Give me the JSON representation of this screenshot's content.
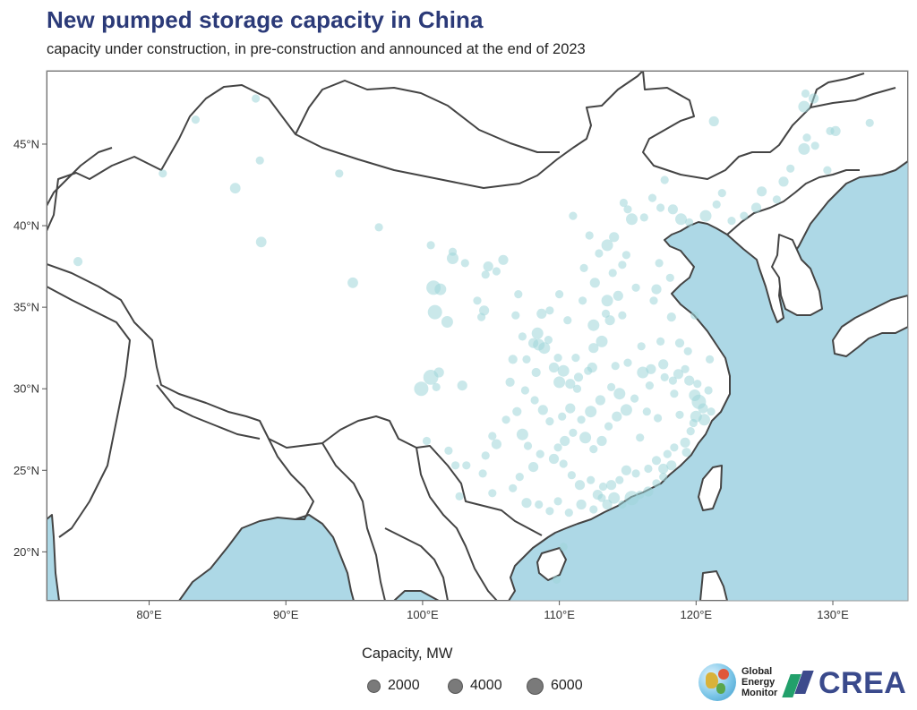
{
  "header": {
    "title": "New pumped storage capacity in China",
    "subtitle": "capacity under construction, in pre-construction and announced at the end of 2023"
  },
  "map": {
    "projection": "equirectangular",
    "lon_range": [
      72.5,
      135.5
    ],
    "lat_range": [
      17,
      49.5
    ],
    "x_ticks": [
      {
        "lon": 80,
        "label": "80°E"
      },
      {
        "lon": 90,
        "label": "90°E"
      },
      {
        "lon": 100,
        "label": "100°E"
      },
      {
        "lon": 110,
        "label": "110°E"
      },
      {
        "lon": 120,
        "label": "120°E"
      },
      {
        "lon": 130,
        "label": "130°E"
      }
    ],
    "y_ticks": [
      {
        "lat": 20,
        "label": "20°N"
      },
      {
        "lat": 25,
        "label": "25°N"
      },
      {
        "lat": 30,
        "label": "30°N"
      },
      {
        "lat": 35,
        "label": "35°N"
      },
      {
        "lat": 40,
        "label": "40°N"
      },
      {
        "lat": 45,
        "label": "45°N"
      }
    ],
    "colors": {
      "land": "#ffffff",
      "sea": "#add8e6",
      "border": "#444444",
      "point_fill": "#9fd6d9",
      "frame": "#999999"
    },
    "point_opacity": 0.55
  },
  "chart_data": {
    "type": "scatter",
    "x_label": "",
    "y_label": "",
    "size_variable": "Capacity, MW",
    "points": [
      [
        83.4,
        46.5,
        1200
      ],
      [
        87.8,
        47.8,
        1200
      ],
      [
        88.1,
        44.0,
        1200
      ],
      [
        81.0,
        43.2,
        1200
      ],
      [
        86.3,
        42.3,
        2000
      ],
      [
        88.2,
        39.0,
        2000
      ],
      [
        93.9,
        43.2,
        1200
      ],
      [
        96.8,
        39.9,
        1200
      ],
      [
        94.9,
        36.5,
        2000
      ],
      [
        74.8,
        37.8,
        1500
      ],
      [
        100.6,
        38.8,
        1200
      ],
      [
        100.8,
        36.2,
        3600
      ],
      [
        101.3,
        36.1,
        2400
      ],
      [
        102.2,
        38.0,
        2400
      ],
      [
        102.2,
        38.4,
        1200
      ],
      [
        103.1,
        37.7,
        1200
      ],
      [
        104.6,
        37.0,
        1200
      ],
      [
        104.8,
        37.5,
        1800
      ],
      [
        105.4,
        37.2,
        1200
      ],
      [
        105.9,
        37.9,
        1800
      ],
      [
        104.0,
        35.4,
        1200
      ],
      [
        104.5,
        34.8,
        1800
      ],
      [
        104.3,
        34.4,
        1200
      ],
      [
        100.9,
        34.7,
        3600
      ],
      [
        101.8,
        34.1,
        2400
      ],
      [
        100.6,
        30.7,
        4000
      ],
      [
        99.9,
        30.0,
        3600
      ],
      [
        101.2,
        31.0,
        1800
      ],
      [
        101.0,
        30.1,
        1200
      ],
      [
        102.9,
        30.2,
        1800
      ],
      [
        100.3,
        26.8,
        1200
      ],
      [
        101.9,
        26.2,
        1200
      ],
      [
        102.4,
        25.3,
        1200
      ],
      [
        103.2,
        25.3,
        1200
      ],
      [
        102.7,
        23.4,
        1200
      ],
      [
        104.6,
        25.9,
        1200
      ],
      [
        105.4,
        26.6,
        1800
      ],
      [
        105.1,
        27.1,
        1200
      ],
      [
        104.4,
        24.8,
        1200
      ],
      [
        105.1,
        23.6,
        1200
      ],
      [
        106.4,
        30.4,
        1500
      ],
      [
        106.6,
        31.8,
        1500
      ],
      [
        107.3,
        33.2,
        1200
      ],
      [
        106.8,
        34.5,
        1200
      ],
      [
        107.0,
        35.8,
        1200
      ],
      [
        108.4,
        33.4,
        2400
      ],
      [
        108.7,
        34.6,
        1800
      ],
      [
        109.3,
        34.8,
        1200
      ],
      [
        110.0,
        35.8,
        1200
      ],
      [
        108.1,
        32.8,
        1800
      ],
      [
        108.5,
        32.7,
        2400
      ],
      [
        109.2,
        33.0,
        1200
      ],
      [
        108.9,
        32.5,
        2400
      ],
      [
        107.6,
        31.8,
        1200
      ],
      [
        108.3,
        31.0,
        1500
      ],
      [
        109.6,
        31.3,
        1800
      ],
      [
        110.3,
        31.1,
        2400
      ],
      [
        110.0,
        30.4,
        2400
      ],
      [
        110.8,
        30.3,
        1800
      ],
      [
        111.4,
        30.7,
        1500
      ],
      [
        111.3,
        30.0,
        1200
      ],
      [
        112.1,
        31.1,
        1200
      ],
      [
        112.5,
        32.5,
        1800
      ],
      [
        113.1,
        32.9,
        2400
      ],
      [
        112.5,
        33.9,
        2400
      ],
      [
        113.4,
        34.6,
        1200
      ],
      [
        113.7,
        34.2,
        1800
      ],
      [
        114.6,
        34.5,
        1200
      ],
      [
        113.5,
        35.4,
        2400
      ],
      [
        114.3,
        35.7,
        1800
      ],
      [
        112.6,
        36.5,
        1800
      ],
      [
        111.8,
        37.4,
        1200
      ],
      [
        112.9,
        38.3,
        1200
      ],
      [
        113.5,
        38.8,
        2400
      ],
      [
        114.0,
        39.3,
        1800
      ],
      [
        112.2,
        39.4,
        1200
      ],
      [
        111.0,
        40.6,
        1200
      ],
      [
        115.3,
        40.4,
        2400
      ],
      [
        115.0,
        41.0,
        1200
      ],
      [
        114.7,
        41.4,
        1200
      ],
      [
        116.2,
        40.5,
        1200
      ],
      [
        116.8,
        41.7,
        1200
      ],
      [
        117.4,
        41.1,
        1200
      ],
      [
        117.7,
        42.8,
        1200
      ],
      [
        118.3,
        41.0,
        1800
      ],
      [
        118.9,
        40.4,
        2400
      ],
      [
        119.5,
        40.2,
        1200
      ],
      [
        120.7,
        40.6,
        2400
      ],
      [
        121.5,
        41.3,
        1200
      ],
      [
        121.9,
        42.0,
        1200
      ],
      [
        122.6,
        40.3,
        1200
      ],
      [
        123.5,
        40.6,
        1200
      ],
      [
        124.4,
        41.1,
        1800
      ],
      [
        124.8,
        42.1,
        1800
      ],
      [
        125.9,
        41.6,
        1200
      ],
      [
        126.4,
        42.7,
        1800
      ],
      [
        126.9,
        43.5,
        1200
      ],
      [
        127.9,
        44.7,
        2400
      ],
      [
        128.1,
        45.4,
        1200
      ],
      [
        128.7,
        44.9,
        1200
      ],
      [
        127.9,
        47.3,
        2400
      ],
      [
        128.6,
        47.8,
        1800
      ],
      [
        128.0,
        48.1,
        1200
      ],
      [
        129.8,
        45.8,
        1200
      ],
      [
        130.2,
        45.8,
        1800
      ],
      [
        129.6,
        43.4,
        1200
      ],
      [
        132.7,
        46.3,
        1200
      ],
      [
        121.3,
        46.4,
        1800
      ],
      [
        118.2,
        34.4,
        1500
      ],
      [
        117.4,
        32.9,
        1200
      ],
      [
        118.8,
        32.8,
        1500
      ],
      [
        119.4,
        32.3,
        1200
      ],
      [
        117.6,
        31.5,
        1800
      ],
      [
        116.7,
        31.2,
        1800
      ],
      [
        116.1,
        31.0,
        2400
      ],
      [
        116.6,
        30.2,
        1200
      ],
      [
        117.7,
        30.7,
        1200
      ],
      [
        118.3,
        30.5,
        1200
      ],
      [
        118.7,
        30.9,
        1800
      ],
      [
        119.2,
        31.2,
        1200
      ],
      [
        119.5,
        30.5,
        1800
      ],
      [
        119.9,
        29.6,
        2400
      ],
      [
        120.2,
        29.2,
        3600
      ],
      [
        120.5,
        28.8,
        1800
      ],
      [
        120.0,
        28.3,
        2400
      ],
      [
        120.6,
        28.1,
        2400
      ],
      [
        119.6,
        27.4,
        1200
      ],
      [
        119.2,
        26.7,
        1800
      ],
      [
        118.4,
        26.4,
        1200
      ],
      [
        117.9,
        26.0,
        1200
      ],
      [
        117.1,
        25.6,
        1500
      ],
      [
        118.2,
        25.3,
        1800
      ],
      [
        117.6,
        24.6,
        1200
      ],
      [
        116.5,
        25.1,
        1200
      ],
      [
        115.6,
        24.8,
        1200
      ],
      [
        114.9,
        25.0,
        1800
      ],
      [
        114.4,
        24.4,
        1200
      ],
      [
        113.8,
        24.1,
        1800
      ],
      [
        113.2,
        24.0,
        1200
      ],
      [
        112.8,
        23.5,
        1800
      ],
      [
        112.3,
        24.4,
        1200
      ],
      [
        111.5,
        24.1,
        1800
      ],
      [
        110.9,
        24.7,
        1200
      ],
      [
        110.3,
        25.4,
        1200
      ],
      [
        109.6,
        25.7,
        1800
      ],
      [
        109.9,
        26.4,
        1200
      ],
      [
        110.4,
        26.8,
        1800
      ],
      [
        111.0,
        27.3,
        1200
      ],
      [
        111.9,
        27.0,
        2400
      ],
      [
        112.5,
        26.3,
        1200
      ],
      [
        113.1,
        26.8,
        1800
      ],
      [
        113.6,
        27.7,
        1200
      ],
      [
        114.2,
        28.3,
        1800
      ],
      [
        114.9,
        28.7,
        2400
      ],
      [
        115.5,
        29.4,
        1200
      ],
      [
        114.4,
        29.7,
        2400
      ],
      [
        113.8,
        30.1,
        1200
      ],
      [
        113.0,
        29.3,
        1800
      ],
      [
        112.3,
        28.6,
        2400
      ],
      [
        111.6,
        28.1,
        1200
      ],
      [
        110.8,
        28.8,
        1800
      ],
      [
        110.2,
        28.3,
        1200
      ],
      [
        109.3,
        28.0,
        1200
      ],
      [
        108.8,
        28.7,
        1800
      ],
      [
        108.2,
        29.3,
        1200
      ],
      [
        107.5,
        29.9,
        1200
      ],
      [
        106.9,
        28.6,
        1500
      ],
      [
        106.1,
        28.1,
        1200
      ],
      [
        107.3,
        27.2,
        2400
      ],
      [
        107.7,
        26.5,
        1200
      ],
      [
        108.6,
        26.0,
        1200
      ],
      [
        108.1,
        25.2,
        1800
      ],
      [
        107.1,
        24.6,
        1200
      ],
      [
        106.6,
        23.9,
        1200
      ],
      [
        107.6,
        23.0,
        1800
      ],
      [
        108.5,
        22.9,
        1200
      ],
      [
        109.3,
        22.5,
        1200
      ],
      [
        109.9,
        23.1,
        1200
      ],
      [
        110.7,
        22.4,
        1200
      ],
      [
        111.6,
        22.9,
        1800
      ],
      [
        112.5,
        22.6,
        1200
      ],
      [
        113.1,
        23.3,
        1200
      ],
      [
        113.5,
        22.9,
        1800
      ],
      [
        114.0,
        23.3,
        2400
      ],
      [
        114.6,
        22.9,
        1200
      ],
      [
        115.3,
        23.3,
        3600
      ],
      [
        115.9,
        23.5,
        1200
      ],
      [
        116.5,
        23.7,
        1800
      ],
      [
        117.1,
        24.2,
        1200
      ],
      [
        117.6,
        25.1,
        1800
      ],
      [
        109.8,
        18.3,
        1200
      ],
      [
        110.3,
        20.3,
        1200
      ],
      [
        119.3,
        26.1,
        1500
      ],
      [
        120.1,
        30.3,
        1200
      ],
      [
        120.9,
        29.9,
        1200
      ],
      [
        118.8,
        28.4,
        1200
      ],
      [
        121.1,
        28.6,
        1200
      ],
      [
        117.1,
        36.1,
        1800
      ],
      [
        118.1,
        36.8,
        1200
      ],
      [
        117.3,
        37.7,
        1200
      ],
      [
        116.9,
        35.4,
        1200
      ],
      [
        115.6,
        36.2,
        1200
      ],
      [
        114.6,
        37.6,
        1200
      ],
      [
        114.9,
        38.2,
        1200
      ],
      [
        113.9,
        37.1,
        1200
      ],
      [
        111.7,
        35.4,
        1200
      ],
      [
        110.6,
        34.2,
        1200
      ],
      [
        109.9,
        31.9,
        1200
      ],
      [
        111.2,
        31.9,
        1200
      ],
      [
        112.4,
        31.3,
        1800
      ],
      [
        114.1,
        31.4,
        1200
      ],
      [
        115.0,
        31.6,
        1200
      ],
      [
        116.0,
        32.6,
        1200
      ],
      [
        119.9,
        34.5,
        1200
      ],
      [
        121.0,
        31.8,
        1200
      ],
      [
        119.8,
        27.9,
        1200
      ],
      [
        118.4,
        29.7,
        1200
      ],
      [
        117.2,
        28.2,
        1200
      ],
      [
        116.4,
        28.6,
        1200
      ],
      [
        115.9,
        27.0,
        1200
      ]
    ]
  },
  "legend": {
    "title": "Capacity, MW",
    "items": [
      {
        "value": 2000,
        "label": "2000"
      },
      {
        "value": 4000,
        "label": "4000"
      },
      {
        "value": 6000,
        "label": "6000"
      }
    ]
  },
  "logos": {
    "gem": {
      "lines": [
        "Global",
        "Energy",
        "Monitor"
      ]
    },
    "crea": {
      "text": "CREA"
    }
  }
}
